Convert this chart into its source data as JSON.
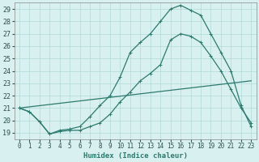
{
  "xlabel": "Humidex (Indice chaleur)",
  "background_color": "#d8f0f0",
  "grid_color": "#b0d8d8",
  "line_color": "#2d7a6e",
  "xlim": [
    -0.5,
    23.5
  ],
  "ylim": [
    18.5,
    29.5
  ],
  "yticks": [
    19,
    20,
    21,
    22,
    23,
    24,
    25,
    26,
    27,
    28,
    29
  ],
  "xticks": [
    0,
    1,
    2,
    3,
    4,
    5,
    6,
    7,
    8,
    9,
    10,
    11,
    12,
    13,
    14,
    15,
    16,
    17,
    18,
    19,
    20,
    21,
    22,
    23
  ],
  "line1_x": [
    0,
    1,
    2,
    3,
    4,
    5,
    6,
    7,
    8,
    9,
    10,
    11,
    12,
    13,
    14,
    15,
    16,
    17,
    18,
    19,
    20,
    21,
    22,
    23
  ],
  "line1_y": [
    21.0,
    20.7,
    19.9,
    18.9,
    19.1,
    19.2,
    19.2,
    19.5,
    19.8,
    20.5,
    21.5,
    22.3,
    23.2,
    23.8,
    24.5,
    26.5,
    27.0,
    26.8,
    26.3,
    25.2,
    24.0,
    22.5,
    21.0,
    19.8
  ],
  "line2_x": [
    0,
    1,
    2,
    3,
    4,
    5,
    6,
    7,
    8,
    9,
    10,
    11,
    12,
    13,
    14,
    15,
    16,
    17,
    18,
    19,
    20,
    21,
    22,
    23
  ],
  "line2_y": [
    21.0,
    20.7,
    19.9,
    18.9,
    19.2,
    19.3,
    19.5,
    20.3,
    21.2,
    22.0,
    23.5,
    25.5,
    26.3,
    27.0,
    28.0,
    29.0,
    29.3,
    28.9,
    28.5,
    27.0,
    25.5,
    24.0,
    21.2,
    19.5
  ],
  "line3_x": [
    0,
    23
  ],
  "line3_y": [
    21.0,
    23.2
  ]
}
